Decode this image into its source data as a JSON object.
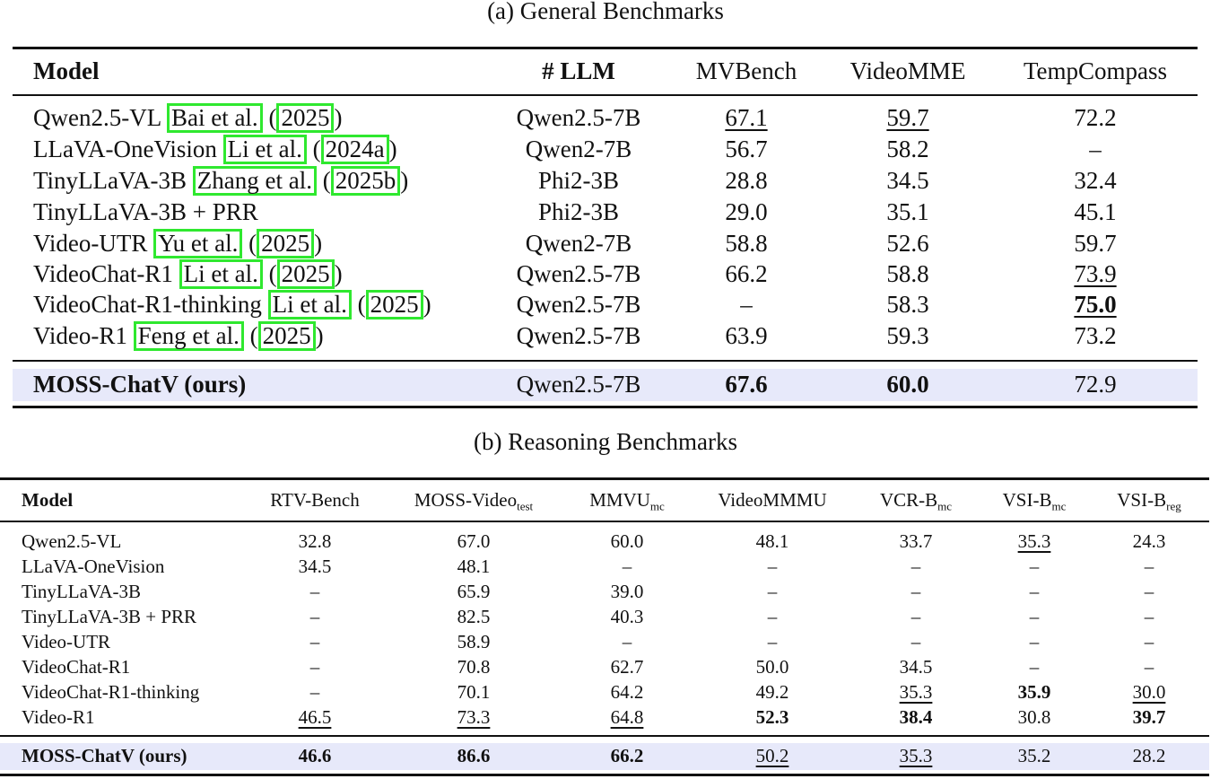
{
  "table_a": {
    "caption": "(a) General Benchmarks",
    "headers": [
      "Model",
      "# LLM",
      "MVBench",
      "VideoMME",
      "TempCompass"
    ],
    "rows": [
      {
        "model": "Qwen2.5-VL",
        "cite_author": "Bai et al.",
        "cite_year": "2025",
        "llm": "Qwen2.5-7B",
        "mvbench": "67.1",
        "videomme": "59.7",
        "tempcompass": "72.2"
      },
      {
        "model": "LLaVA-OneVision",
        "cite_author": "Li et al.",
        "cite_year": "2024a",
        "llm": "Qwen2-7B",
        "mvbench": "56.7",
        "videomme": "58.2",
        "tempcompass": "–"
      },
      {
        "model": "TinyLLaVA-3B",
        "cite_author": "Zhang et al.",
        "cite_year": "2025b",
        "llm": "Phi2-3B",
        "mvbench": "28.8",
        "videomme": "34.5",
        "tempcompass": "32.4"
      },
      {
        "model": "TinyLLaVA-3B + PRR",
        "cite_author": "",
        "cite_year": "",
        "llm": "Phi2-3B",
        "mvbench": "29.0",
        "videomme": "35.1",
        "tempcompass": "45.1"
      },
      {
        "model": "Video-UTR",
        "cite_author": "Yu et al.",
        "cite_year": "2025",
        "llm": "Qwen2-7B",
        "mvbench": "58.8",
        "videomme": "52.6",
        "tempcompass": "59.7"
      },
      {
        "model": "VideoChat-R1",
        "cite_author": "Li et al.",
        "cite_year": "2025",
        "llm": "Qwen2.5-7B",
        "mvbench": "66.2",
        "videomme": "58.8",
        "tempcompass": "73.9"
      },
      {
        "model": "VideoChat-R1-thinking",
        "cite_author": "Li et al.",
        "cite_year": "2025",
        "llm": "Qwen2.5-7B",
        "mvbench": "–",
        "videomme": "58.3",
        "tempcompass": "75.0"
      },
      {
        "model": "Video-R1",
        "cite_author": "Feng et al.",
        "cite_year": "2025",
        "llm": "Qwen2.5-7B",
        "mvbench": "63.9",
        "videomme": "59.3",
        "tempcompass": "73.2"
      }
    ],
    "ours": {
      "model": "MOSS-ChatV (ours)",
      "llm": "Qwen2.5-7B",
      "mvbench": "67.6",
      "videomme": "60.0",
      "tempcompass": "72.9"
    }
  },
  "table_b": {
    "caption": "(b) Reasoning Benchmarks",
    "headers": {
      "model": "Model",
      "rtv": "RTV-Bench",
      "moss_main": "MOSS-Video",
      "moss_sub": "test",
      "mmvu_main": "MMVU",
      "mmvu_sub": "mc",
      "videommmu": "VideoMMMU",
      "vcr_main": "VCR-B",
      "vcr_sub": "mc",
      "vsimc_main": "VSI-B",
      "vsimc_sub": "mc",
      "vsireg_main": "VSI-B",
      "vsireg_sub": "reg"
    },
    "rows": [
      {
        "model": "Qwen2.5-VL",
        "vals": [
          "32.8",
          "67.0",
          "60.0",
          "48.1",
          "33.7",
          "35.3",
          "24.3"
        ]
      },
      {
        "model": "LLaVA-OneVision",
        "vals": [
          "34.5",
          "48.1",
          "–",
          "–",
          "–",
          "–",
          "–"
        ]
      },
      {
        "model": "TinyLLaVA-3B",
        "vals": [
          "–",
          "65.9",
          "39.0",
          "–",
          "–",
          "–",
          "–"
        ]
      },
      {
        "model": "TinyLLaVA-3B + PRR",
        "vals": [
          "–",
          "82.5",
          "40.3",
          "–",
          "–",
          "–",
          "–"
        ]
      },
      {
        "model": "Video-UTR",
        "vals": [
          "–",
          "58.9",
          "–",
          "–",
          "–",
          "–",
          "–"
        ]
      },
      {
        "model": "VideoChat-R1",
        "vals": [
          "–",
          "70.8",
          "62.7",
          "50.0",
          "34.5",
          "–",
          "–"
        ]
      },
      {
        "model": "VideoChat-R1-thinking",
        "vals": [
          "–",
          "70.1",
          "64.2",
          "49.2",
          "35.3",
          "35.9",
          "30.0"
        ]
      },
      {
        "model": "Video-R1",
        "vals": [
          "46.5",
          "73.3",
          "64.8",
          "52.3",
          "38.4",
          "30.8",
          "39.7"
        ]
      }
    ],
    "ours": {
      "model": "MOSS-ChatV (ours)",
      "vals": [
        "46.6",
        "86.6",
        "66.2",
        "50.2",
        "35.3",
        "35.2",
        "28.2"
      ]
    }
  }
}
